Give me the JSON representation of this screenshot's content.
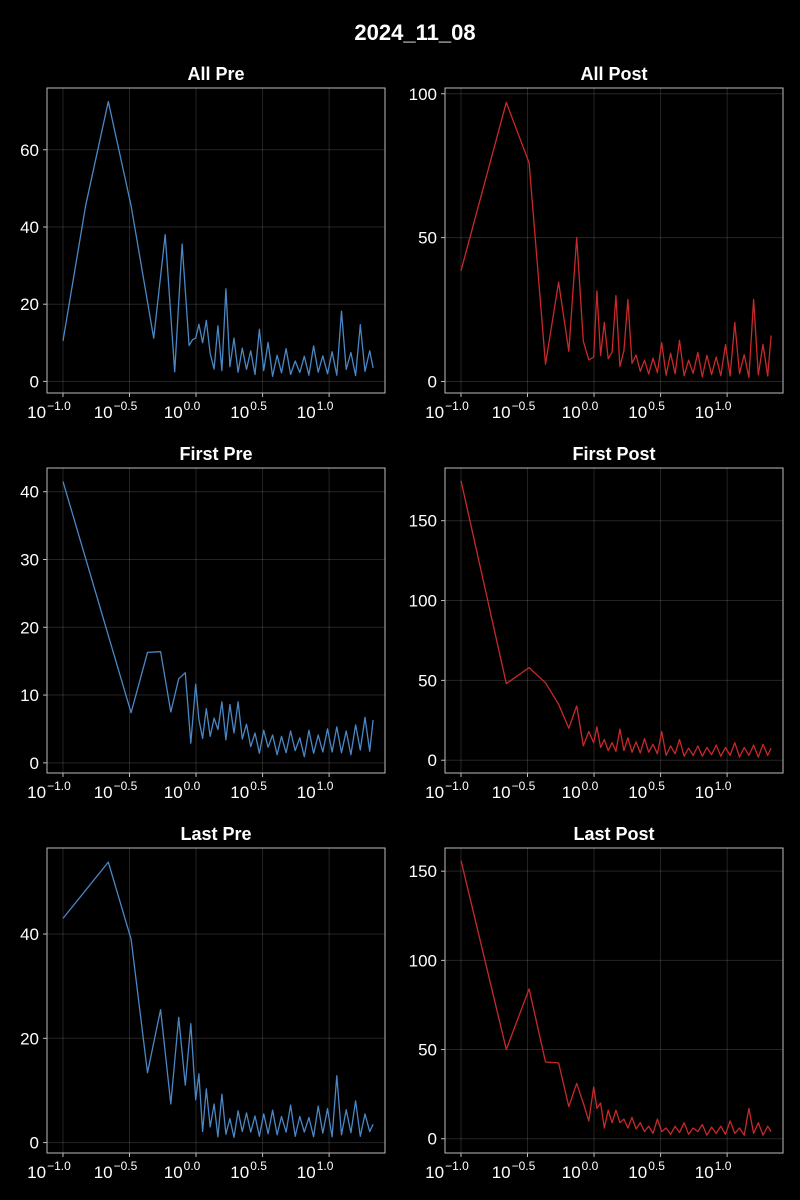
{
  "figure": {
    "title": "2024_11_08"
  },
  "colors": {
    "pre": "#4a87c4",
    "post": "#c8292a",
    "background": "#000000",
    "text": "#ffffff"
  },
  "chart_data": [
    {
      "id": "all-pre",
      "type": "line",
      "title": "All Pre",
      "color": "pre",
      "x_scale": "log10",
      "x_ticks": [
        -1.0,
        -0.5,
        0.0,
        0.5,
        1.0
      ],
      "y_ticks": [
        0,
        20,
        40,
        60
      ],
      "ylim": [
        -3,
        76
      ],
      "grid": true,
      "x": [
        0.1,
        0.148,
        0.219,
        0.325,
        0.481,
        0.586,
        0.691,
        0.786,
        0.887,
        0.941,
        0.994,
        1.05,
        1.12,
        1.195,
        1.277,
        1.366,
        1.461,
        1.564,
        1.676,
        1.797,
        1.928,
        2.071,
        2.225,
        2.393,
        2.576,
        2.775,
        2.991,
        3.226,
        3.482,
        3.76,
        4.063,
        4.391,
        4.749,
        5.137,
        5.559,
        6.017,
        6.515,
        7.055,
        7.642,
        8.279,
        8.971,
        9.723,
        10.54,
        11.43,
        12.39,
        13.44,
        14.57,
        15.81,
        17.15,
        18.6,
        20.18,
        21.4
      ],
      "y": [
        10.5,
        45.5,
        72.5,
        45.5,
        11.2,
        38.0,
        2.5,
        35.6,
        9.3,
        10.8,
        11.2,
        14.8,
        10.0,
        15.8,
        7.2,
        3.2,
        14.4,
        2.8,
        24.0,
        3.8,
        11.2,
        2.4,
        8.6,
        3.1,
        7.9,
        1.8,
        13.5,
        2.8,
        10.1,
        1.3,
        6.8,
        2.2,
        8.5,
        1.8,
        5.3,
        2.3,
        6.5,
        1.6,
        9.2,
        2.4,
        6.6,
        2.0,
        7.7,
        1.6,
        18.2,
        3.1,
        7.5,
        1.5,
        14.7,
        2.6,
        7.9,
        3.5
      ]
    },
    {
      "id": "all-post",
      "type": "line",
      "title": "All Post",
      "color": "post",
      "x_scale": "log10",
      "x_ticks": [
        -1.0,
        -0.5,
        0.0,
        0.5,
        1.0
      ],
      "y_ticks": [
        0,
        50,
        100
      ],
      "ylim": [
        -4,
        102
      ],
      "grid": true,
      "x": [
        0.1,
        0.219,
        0.325,
        0.432,
        0.542,
        0.646,
        0.741,
        0.831,
        0.914,
        0.994,
        1.05,
        1.12,
        1.195,
        1.277,
        1.366,
        1.461,
        1.564,
        1.676,
        1.797,
        1.928,
        2.071,
        2.225,
        2.393,
        2.576,
        2.775,
        2.991,
        3.226,
        3.482,
        3.76,
        4.063,
        4.391,
        4.749,
        5.137,
        5.559,
        6.017,
        6.515,
        7.055,
        7.642,
        8.279,
        8.971,
        9.723,
        10.54,
        11.43,
        12.39,
        13.44,
        14.57,
        15.81,
        17.15,
        18.6,
        20.18,
        21.4
      ],
      "y": [
        38.5,
        97.0,
        76.0,
        6.0,
        34.5,
        10.5,
        50.0,
        14.0,
        7.5,
        8.5,
        31.5,
        9.0,
        20.5,
        7.9,
        10.2,
        29.8,
        5.2,
        10.7,
        28.5,
        6.3,
        9.2,
        3.5,
        7.4,
        2.6,
        8.1,
        3.1,
        13.5,
        2.2,
        9.8,
        2.7,
        14.3,
        2.0,
        7.4,
        2.8,
        10.1,
        1.6,
        9.1,
        2.4,
        8.5,
        2.0,
        12.8,
        1.9,
        20.5,
        2.7,
        9.3,
        1.4,
        28.5,
        2.3,
        12.9,
        1.9,
        16.0
      ]
    },
    {
      "id": "first-pre",
      "type": "line",
      "title": "First Pre",
      "color": "pre",
      "x_scale": "log10",
      "x_ticks": [
        -1.0,
        -0.5,
        0.0,
        0.5,
        1.0
      ],
      "y_ticks": [
        0,
        10,
        20,
        30,
        40
      ],
      "ylim": [
        -1.5,
        43.5
      ],
      "grid": true,
      "x": [
        0.1,
        0.219,
        0.325,
        0.432,
        0.542,
        0.646,
        0.741,
        0.831,
        0.914,
        0.994,
        1.05,
        1.12,
        1.195,
        1.277,
        1.366,
        1.461,
        1.564,
        1.676,
        1.797,
        1.928,
        2.071,
        2.225,
        2.393,
        2.576,
        2.775,
        2.991,
        3.226,
        3.482,
        3.76,
        4.063,
        4.391,
        4.749,
        5.137,
        5.559,
        6.017,
        6.515,
        7.055,
        7.642,
        8.279,
        8.971,
        9.723,
        10.54,
        11.43,
        12.39,
        13.44,
        14.57,
        15.81,
        17.15,
        18.6,
        20.18,
        21.4
      ],
      "y": [
        41.5,
        18.8,
        7.4,
        16.3,
        16.4,
        7.5,
        12.4,
        13.3,
        2.9,
        11.6,
        6.4,
        3.6,
        8.0,
        3.9,
        6.6,
        4.9,
        9.0,
        3.4,
        8.6,
        4.4,
        9.0,
        3.5,
        5.7,
        2.4,
        4.4,
        1.4,
        4.8,
        2.3,
        4.1,
        1.2,
        3.9,
        1.5,
        4.7,
        1.8,
        3.7,
        0.9,
        4.8,
        1.4,
        4.1,
        1.6,
        5.0,
        1.6,
        5.3,
        1.5,
        4.7,
        1.2,
        5.6,
        1.9,
        6.7,
        1.7,
        6.3
      ]
    },
    {
      "id": "first-post",
      "type": "line",
      "title": "First Post",
      "color": "post",
      "x_scale": "log10",
      "x_ticks": [
        -1.0,
        -0.5,
        0.0,
        0.5,
        1.0
      ],
      "y_ticks": [
        0,
        50,
        100,
        150
      ],
      "ylim": [
        -8,
        183
      ],
      "grid": true,
      "x": [
        0.1,
        0.219,
        0.325,
        0.432,
        0.542,
        0.646,
        0.741,
        0.831,
        0.914,
        0.994,
        1.05,
        1.12,
        1.195,
        1.277,
        1.366,
        1.461,
        1.564,
        1.676,
        1.797,
        1.928,
        2.071,
        2.225,
        2.393,
        2.576,
        2.775,
        2.991,
        3.226,
        3.482,
        3.76,
        4.063,
        4.391,
        4.749,
        5.137,
        5.559,
        6.017,
        6.515,
        7.055,
        7.642,
        8.279,
        8.971,
        9.723,
        10.54,
        11.43,
        12.39,
        13.44,
        14.57,
        15.81,
        17.15,
        18.6,
        20.18,
        21.4
      ],
      "y": [
        175.0,
        48.0,
        58.0,
        48.5,
        35.0,
        20.0,
        34.0,
        9.0,
        18.0,
        11.0,
        21.0,
        8.0,
        13.0,
        6.0,
        11.0,
        5.5,
        19.5,
        6.0,
        14.0,
        5.0,
        11.5,
        4.5,
        13.5,
        5.0,
        10.0,
        4.0,
        18.0,
        3.0,
        9.0,
        4.0,
        13.0,
        2.5,
        7.5,
        3.0,
        9.0,
        2.5,
        8.0,
        3.5,
        9.5,
        2.5,
        8.0,
        3.0,
        11.0,
        2.0,
        8.0,
        3.0,
        9.5,
        2.0,
        10.0,
        3.0,
        7.5
      ]
    },
    {
      "id": "last-pre",
      "type": "line",
      "title": "Last Pre",
      "color": "pre",
      "x_scale": "log10",
      "x_ticks": [
        -1.0,
        -0.5,
        0.0,
        0.5,
        1.0
      ],
      "y_ticks": [
        0,
        20,
        40
      ],
      "ylim": [
        -2,
        56.5
      ],
      "grid": true,
      "x": [
        0.1,
        0.219,
        0.325,
        0.432,
        0.542,
        0.646,
        0.741,
        0.831,
        0.914,
        0.994,
        1.05,
        1.12,
        1.195,
        1.277,
        1.366,
        1.461,
        1.564,
        1.676,
        1.797,
        1.928,
        2.071,
        2.225,
        2.393,
        2.576,
        2.775,
        2.991,
        3.226,
        3.482,
        3.76,
        4.063,
        4.391,
        4.749,
        5.137,
        5.559,
        6.017,
        6.515,
        7.055,
        7.642,
        8.279,
        8.971,
        9.723,
        10.54,
        11.43,
        12.39,
        13.44,
        14.57,
        15.81,
        17.15,
        18.6,
        20.18,
        21.4
      ],
      "y": [
        43.0,
        53.8,
        39.0,
        13.4,
        25.5,
        7.4,
        24.0,
        11.0,
        22.8,
        8.2,
        13.2,
        2.1,
        10.3,
        3.0,
        7.4,
        1.1,
        9.3,
        1.6,
        4.6,
        1.0,
        6.1,
        2.1,
        5.7,
        2.0,
        5.1,
        1.2,
        5.5,
        1.7,
        6.2,
        1.5,
        5.0,
        2.0,
        7.2,
        1.2,
        5.0,
        2.0,
        4.8,
        1.1,
        7.0,
        1.8,
        6.5,
        1.1,
        12.8,
        1.5,
        6.3,
        1.9,
        8.0,
        1.2,
        5.5,
        2.1,
        3.5
      ]
    },
    {
      "id": "last-post",
      "type": "line",
      "title": "Last Post",
      "color": "post",
      "x_scale": "log10",
      "x_ticks": [
        -1.0,
        -0.5,
        0.0,
        0.5,
        1.0
      ],
      "y_ticks": [
        0,
        50,
        100,
        150
      ],
      "ylim": [
        -8,
        163
      ],
      "grid": true,
      "x": [
        0.1,
        0.219,
        0.325,
        0.432,
        0.542,
        0.646,
        0.741,
        0.831,
        0.914,
        0.994,
        1.05,
        1.12,
        1.195,
        1.277,
        1.366,
        1.461,
        1.564,
        1.676,
        1.797,
        1.928,
        2.071,
        2.225,
        2.393,
        2.576,
        2.775,
        2.991,
        3.226,
        3.482,
        3.76,
        4.063,
        4.391,
        4.749,
        5.137,
        5.559,
        6.017,
        6.515,
        7.055,
        7.642,
        8.279,
        8.971,
        9.723,
        10.54,
        11.43,
        12.39,
        13.44,
        14.57,
        15.81,
        17.15,
        18.6,
        20.18,
        21.4
      ],
      "y": [
        156.0,
        50.0,
        84.0,
        43.0,
        42.5,
        18.0,
        31.0,
        20.0,
        10.0,
        29.0,
        17.0,
        20.0,
        6.0,
        16.0,
        9.0,
        16.0,
        9.0,
        11.0,
        6.0,
        12.0,
        5.5,
        9.0,
        4.0,
        7.0,
        3.0,
        11.0,
        4.0,
        6.0,
        2.5,
        7.0,
        3.5,
        9.0,
        2.5,
        6.0,
        4.0,
        8.0,
        2.0,
        6.5,
        3.0,
        7.0,
        2.5,
        10.0,
        3.0,
        6.0,
        2.0,
        17.0,
        3.0,
        9.0,
        2.0,
        7.0,
        4.0
      ]
    }
  ]
}
